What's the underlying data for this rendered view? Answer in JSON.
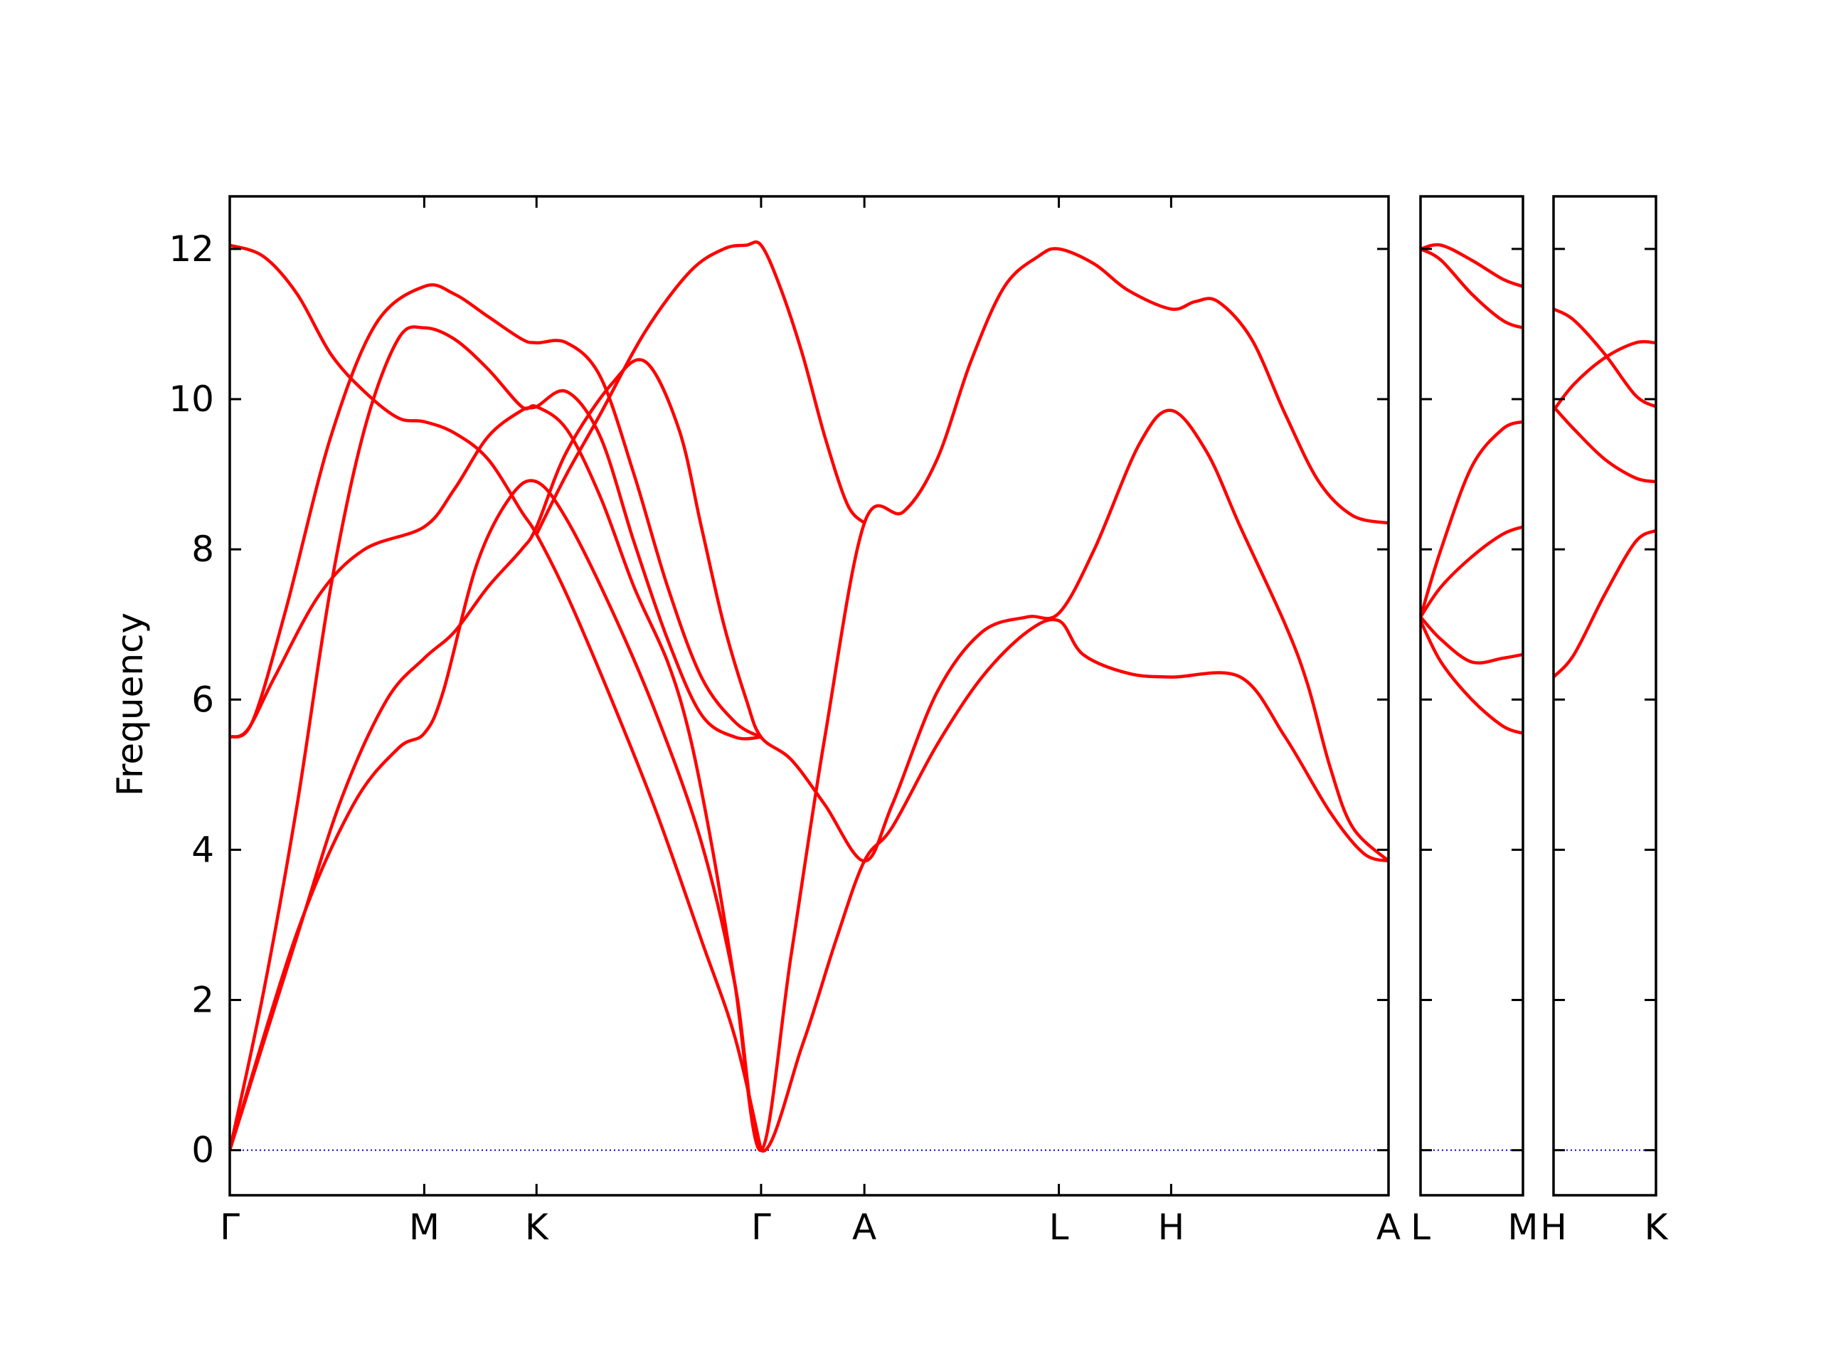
{
  "chart_data": {
    "type": "line",
    "title": "",
    "ylabel": "Frequency",
    "ylim": [
      -0.6,
      12.7
    ],
    "yticks": [
      0,
      2,
      4,
      6,
      8,
      10,
      12
    ],
    "grid": false,
    "legend": "none",
    "colors": {
      "bands": "#ff0000",
      "zero_line": "#0000cc"
    },
    "panels": [
      {
        "id": "main",
        "xrange": [
          0,
          5.16
        ],
        "kpoints": [
          {
            "label": "Γ",
            "x": 0
          },
          {
            "label": "M",
            "x": 0.866
          },
          {
            "label": "K",
            "x": 1.366
          },
          {
            "label": "Γ",
            "x": 2.366
          },
          {
            "label": "A",
            "x": 2.826
          },
          {
            "label": "L",
            "x": 3.692
          },
          {
            "label": "H",
            "x": 4.192
          },
          {
            "label": "A",
            "x": 5.16
          }
        ],
        "bands": [
          [
            [
              0,
              0
            ],
            [
              0.3,
              2.9
            ],
            [
              0.55,
              4.6
            ],
            [
              0.75,
              5.35
            ],
            [
              0.866,
              5.55
            ],
            [
              0.95,
              6.1
            ],
            [
              1.1,
              7.8
            ],
            [
              1.25,
              8.7
            ],
            [
              1.366,
              8.9
            ],
            [
              1.5,
              8.4
            ],
            [
              1.7,
              7.2
            ],
            [
              1.9,
              5.8
            ],
            [
              2.1,
              4.1
            ],
            [
              2.25,
              2.2
            ],
            [
              2.366,
              0
            ],
            [
              2.55,
              1.4
            ],
            [
              2.7,
              2.8
            ],
            [
              2.826,
              3.85
            ],
            [
              2.95,
              4.3
            ],
            [
              3.15,
              5.4
            ],
            [
              3.35,
              6.3
            ],
            [
              3.55,
              6.9
            ],
            [
              3.692,
              7.05
            ],
            [
              3.8,
              6.6
            ],
            [
              4.0,
              6.35
            ],
            [
              4.192,
              6.3
            ],
            [
              4.5,
              6.3
            ],
            [
              4.7,
              5.5
            ],
            [
              4.9,
              4.5
            ],
            [
              5.05,
              3.95
            ],
            [
              5.16,
              3.85
            ]
          ],
          [
            [
              0,
              0
            ],
            [
              0.3,
              2.85
            ],
            [
              0.5,
              4.7
            ],
            [
              0.7,
              6.0
            ],
            [
              0.866,
              6.55
            ],
            [
              1.0,
              6.9
            ],
            [
              1.15,
              7.5
            ],
            [
              1.3,
              8.0
            ],
            [
              1.366,
              8.3
            ],
            [
              1.5,
              9.3
            ],
            [
              1.7,
              10.2
            ],
            [
              1.85,
              10.5
            ],
            [
              2.0,
              9.6
            ],
            [
              2.1,
              8.3
            ],
            [
              2.2,
              7.0
            ],
            [
              2.3,
              6.0
            ],
            [
              2.366,
              5.5
            ],
            [
              2.5,
              5.2
            ],
            [
              2.65,
              4.6
            ],
            [
              2.826,
              3.85
            ],
            [
              2.95,
              4.6
            ],
            [
              3.15,
              6.1
            ],
            [
              3.35,
              6.9
            ],
            [
              3.55,
              7.1
            ],
            [
              3.692,
              7.15
            ],
            [
              3.85,
              8.0
            ],
            [
              4.05,
              9.4
            ],
            [
              4.192,
              9.85
            ],
            [
              4.35,
              9.3
            ],
            [
              4.5,
              8.3
            ],
            [
              4.7,
              7.0
            ],
            [
              4.8,
              6.2
            ],
            [
              4.9,
              5.1
            ],
            [
              5.0,
              4.3
            ],
            [
              5.16,
              3.85
            ]
          ],
          [
            [
              0,
              0
            ],
            [
              0.15,
              2.1
            ],
            [
              0.3,
              4.6
            ],
            [
              0.45,
              7.5
            ],
            [
              0.6,
              9.6
            ],
            [
              0.75,
              10.8
            ],
            [
              0.866,
              10.95
            ],
            [
              1.0,
              10.8
            ],
            [
              1.15,
              10.4
            ],
            [
              1.3,
              9.9
            ],
            [
              1.366,
              9.9
            ],
            [
              1.5,
              9.6
            ],
            [
              1.65,
              8.7
            ],
            [
              1.8,
              7.5
            ],
            [
              1.95,
              6.5
            ],
            [
              2.05,
              5.5
            ],
            [
              2.15,
              4.0
            ],
            [
              2.25,
              2.2
            ],
            [
              2.366,
              0
            ],
            [
              2.5,
              2.6
            ],
            [
              2.65,
              5.5
            ],
            [
              2.826,
              8.35
            ],
            [
              3.0,
              8.5
            ],
            [
              3.15,
              9.2
            ],
            [
              3.3,
              10.5
            ],
            [
              3.45,
              11.5
            ],
            [
              3.6,
              11.9
            ],
            [
              3.692,
              12.0
            ],
            [
              3.85,
              11.8
            ],
            [
              4.0,
              11.45
            ],
            [
              4.192,
              11.2
            ],
            [
              4.3,
              11.3
            ],
            [
              4.4,
              11.3
            ],
            [
              4.55,
              10.8
            ],
            [
              4.7,
              9.8
            ],
            [
              4.85,
              8.9
            ],
            [
              5.0,
              8.45
            ],
            [
              5.16,
              8.35
            ]
          ],
          [
            [
              0,
              5.5
            ],
            [
              0.08,
              5.6
            ],
            [
              0.2,
              6.3
            ],
            [
              0.4,
              7.4
            ],
            [
              0.6,
              8.0
            ],
            [
              0.866,
              8.3
            ],
            [
              1.0,
              8.8
            ],
            [
              1.15,
              9.5
            ],
            [
              1.3,
              9.85
            ],
            [
              1.366,
              9.9
            ],
            [
              1.5,
              10.1
            ],
            [
              1.65,
              9.5
            ],
            [
              1.8,
              8.1
            ],
            [
              1.95,
              6.8
            ],
            [
              2.1,
              5.8
            ],
            [
              2.25,
              5.5
            ],
            [
              2.366,
              5.5
            ]
          ],
          [
            [
              0,
              5.5
            ],
            [
              0.1,
              5.7
            ],
            [
              0.25,
              7.2
            ],
            [
              0.45,
              9.5
            ],
            [
              0.65,
              11.0
            ],
            [
              0.866,
              11.5
            ],
            [
              1.0,
              11.4
            ],
            [
              1.15,
              11.1
            ],
            [
              1.3,
              10.8
            ],
            [
              1.366,
              10.75
            ],
            [
              1.5,
              10.75
            ],
            [
              1.65,
              10.3
            ],
            [
              1.8,
              9.0
            ],
            [
              1.95,
              7.5
            ],
            [
              2.1,
              6.3
            ],
            [
              2.25,
              5.7
            ],
            [
              2.366,
              5.5
            ]
          ],
          [
            [
              0,
              12.05
            ],
            [
              0.15,
              11.9
            ],
            [
              0.3,
              11.4
            ],
            [
              0.45,
              10.6
            ],
            [
              0.6,
              10.1
            ],
            [
              0.75,
              9.75
            ],
            [
              0.866,
              9.7
            ],
            [
              1.0,
              9.55
            ],
            [
              1.15,
              9.2
            ],
            [
              1.3,
              8.5
            ],
            [
              1.366,
              8.2
            ],
            [
              1.5,
              7.4
            ],
            [
              1.7,
              6.0
            ],
            [
              1.9,
              4.5
            ],
            [
              2.1,
              2.8
            ],
            [
              2.25,
              1.5
            ],
            [
              2.366,
              0
            ]
          ],
          [
            [
              1.366,
              8.2
            ],
            [
              1.5,
              9.0
            ],
            [
              1.65,
              9.8
            ],
            [
              1.85,
              10.9
            ],
            [
              2.05,
              11.7
            ],
            [
              2.2,
              12.0
            ],
            [
              2.3,
              12.05
            ],
            [
              2.366,
              12.05
            ],
            [
              2.45,
              11.5
            ],
            [
              2.55,
              10.6
            ],
            [
              2.65,
              9.5
            ],
            [
              2.75,
              8.6
            ],
            [
              2.826,
              8.35
            ]
          ]
        ]
      },
      {
        "id": "LM",
        "xrange": [
          0,
          0.5
        ],
        "kpoints": [
          {
            "label": "L",
            "x": 0
          },
          {
            "label": "M",
            "x": 0.5
          }
        ],
        "bands": [
          [
            [
              0,
              12.0
            ],
            [
              0.1,
              12.05
            ],
            [
              0.25,
              11.85
            ],
            [
              0.4,
              11.6
            ],
            [
              0.5,
              11.5
            ]
          ],
          [
            [
              0,
              12.0
            ],
            [
              0.1,
              11.85
            ],
            [
              0.25,
              11.4
            ],
            [
              0.4,
              11.05
            ],
            [
              0.5,
              10.95
            ]
          ],
          [
            [
              0,
              7.1
            ],
            [
              0.1,
              8.0
            ],
            [
              0.25,
              9.1
            ],
            [
              0.4,
              9.6
            ],
            [
              0.5,
              9.7
            ]
          ],
          [
            [
              0,
              7.1
            ],
            [
              0.1,
              7.5
            ],
            [
              0.25,
              7.9
            ],
            [
              0.4,
              8.2
            ],
            [
              0.5,
              8.3
            ]
          ],
          [
            [
              0,
              7.1
            ],
            [
              0.1,
              6.8
            ],
            [
              0.25,
              6.5
            ],
            [
              0.4,
              6.55
            ],
            [
              0.5,
              6.6
            ]
          ],
          [
            [
              0,
              7.05
            ],
            [
              0.1,
              6.5
            ],
            [
              0.25,
              6.0
            ],
            [
              0.4,
              5.65
            ],
            [
              0.5,
              5.55
            ]
          ]
        ]
      },
      {
        "id": "HK",
        "xrange": [
          0,
          0.5
        ],
        "kpoints": [
          {
            "label": "H",
            "x": 0
          },
          {
            "label": "K",
            "x": 0.5
          }
        ],
        "bands": [
          [
            [
              0,
              11.2
            ],
            [
              0.1,
              11.05
            ],
            [
              0.25,
              10.6
            ],
            [
              0.4,
              10.05
            ],
            [
              0.5,
              9.9
            ]
          ],
          [
            [
              0,
              9.85
            ],
            [
              0.1,
              10.2
            ],
            [
              0.25,
              10.55
            ],
            [
              0.4,
              10.75
            ],
            [
              0.5,
              10.75
            ]
          ],
          [
            [
              0,
              9.9
            ],
            [
              0.1,
              9.6
            ],
            [
              0.25,
              9.2
            ],
            [
              0.4,
              8.95
            ],
            [
              0.5,
              8.9
            ]
          ],
          [
            [
              0,
              6.3
            ],
            [
              0.1,
              6.6
            ],
            [
              0.25,
              7.4
            ],
            [
              0.4,
              8.1
            ],
            [
              0.5,
              8.25
            ]
          ]
        ]
      }
    ]
  }
}
